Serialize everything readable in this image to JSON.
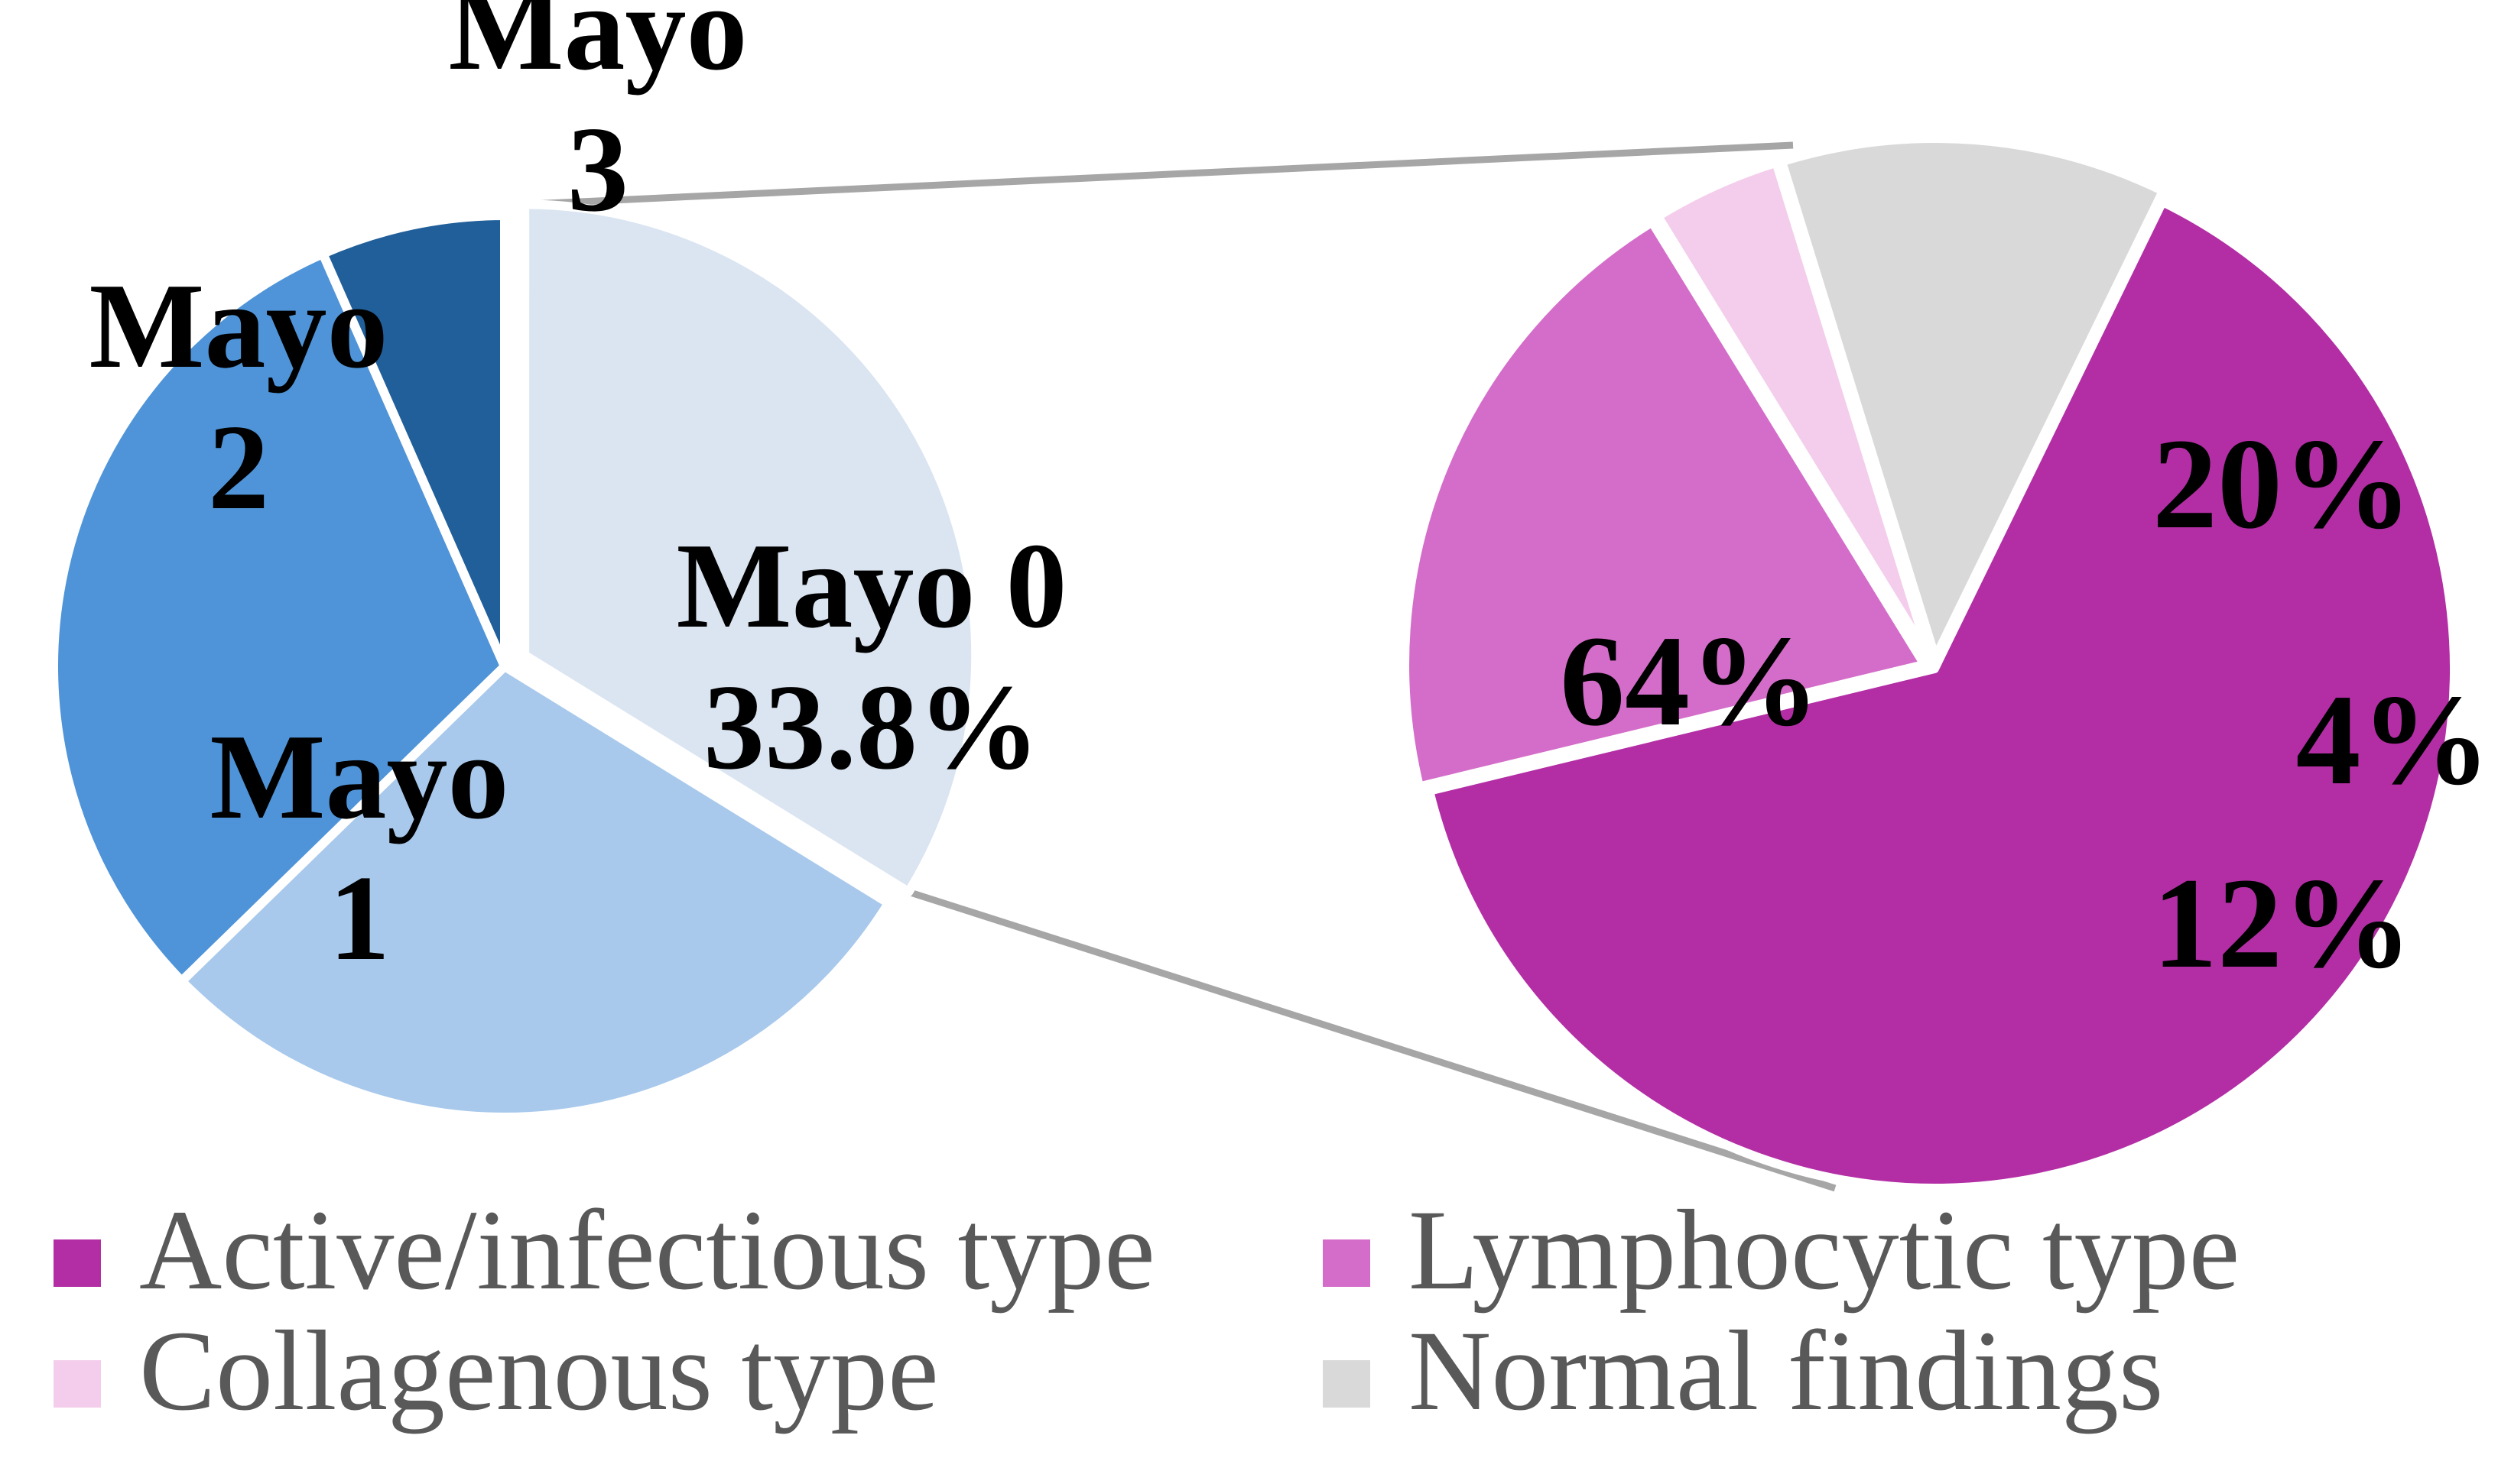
{
  "chart_data": {
    "type": "pie",
    "subtype": "pie-of-pie",
    "primary": {
      "slices": [
        {
          "name": "Mayo 0",
          "label_lines": [
            "Mayo 0",
            "33.8%"
          ],
          "value": 33.8,
          "color": "#dae5f1"
        },
        {
          "name": "Mayo 1",
          "label_lines": [
            "Mayo",
            "1"
          ],
          "value": 28.9,
          "color": "#a8c9ec"
        },
        {
          "name": "Mayo 2",
          "label_lines": [
            "Mayo",
            "2"
          ],
          "value": 30.7,
          "color": "#4f94d8"
        },
        {
          "name": "Mayo 3",
          "label_lines": [
            "Mayo",
            "3"
          ],
          "value": 6.6,
          "color": "#215f9a"
        }
      ],
      "exploded_slice": "Mayo 0"
    },
    "secondary": {
      "slices": [
        {
          "name": "Active/infectious type",
          "label": "64%",
          "value": 64,
          "color": "#b32ea5"
        },
        {
          "name": "Lymphocytic type",
          "label": "20%",
          "value": 20,
          "color": "#d46dc9"
        },
        {
          "name": "Collagenous type",
          "label": "4%",
          "value": 4,
          "color": "#f3cdeb"
        },
        {
          "name": "Normal findings",
          "label": "12%",
          "value": 12,
          "color": "#d9d9d9"
        }
      ]
    },
    "legend": {
      "position": "bottom",
      "items": [
        {
          "label": "Active/infectious type",
          "color": "#b32ea5"
        },
        {
          "label": "Lymphocytic type",
          "color": "#d46dc9"
        },
        {
          "label": "Collagenous type",
          "color": "#f3cdeb"
        },
        {
          "label": "Normal findings",
          "color": "#d9d9d9"
        }
      ]
    },
    "connector_color": "#a6a6a6"
  }
}
